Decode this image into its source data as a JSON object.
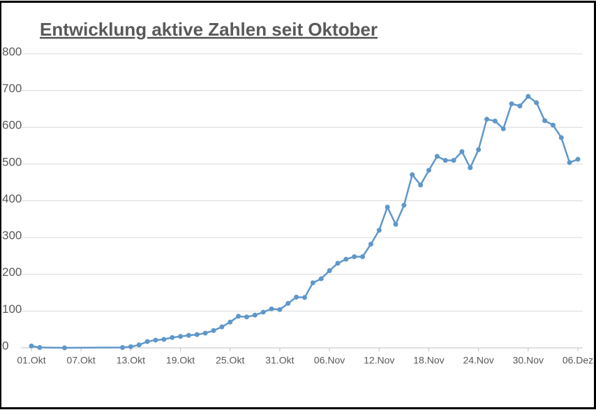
{
  "chart_data": {
    "type": "line",
    "title": "Entwicklung aktive Zahlen seit Oktober",
    "x": [
      "01.Okt",
      "02.Okt",
      "05.Okt",
      "12.Okt",
      "13.Okt",
      "14.Okt",
      "15.Okt",
      "16.Okt",
      "17.Okt",
      "18.Okt",
      "19.Okt",
      "20.Okt",
      "21.Okt",
      "22.Okt",
      "23.Okt",
      "24.Okt",
      "25.Okt",
      "26.Okt",
      "27.Okt",
      "28.Okt",
      "29.Okt",
      "30.Okt",
      "31.Okt",
      "01.Nov",
      "02.Nov",
      "03.Nov",
      "04.Nov",
      "05.Nov",
      "06.Nov",
      "07.Nov",
      "08.Nov",
      "09.Nov",
      "10.Nov",
      "11.Nov",
      "12.Nov",
      "13.Nov",
      "14.Nov",
      "15.Nov",
      "16.Nov",
      "17.Nov",
      "18.Nov",
      "19.Nov",
      "20.Nov",
      "21.Nov",
      "22.Nov",
      "23.Nov",
      "24.Nov",
      "25.Nov",
      "26.Nov",
      "27.Nov",
      "28.Nov",
      "29.Nov",
      "30.Nov",
      "01.Dez",
      "02.Dez",
      "03.Dez",
      "04.Dez",
      "05.Dez",
      "06.Dez"
    ],
    "series": [
      {
        "color": "#5f97c9",
        "values": [
          5,
          1,
          0,
          1,
          3,
          8,
          17,
          21,
          23,
          28,
          31,
          34,
          36,
          40,
          47,
          57,
          70,
          86,
          84,
          89,
          97,
          106,
          104,
          121,
          138,
          137,
          177,
          188,
          210,
          230,
          241,
          248,
          248,
          282,
          320,
          383,
          336,
          388,
          471,
          443,
          483,
          521,
          510,
          510,
          534,
          490,
          539,
          622,
          617,
          596,
          664,
          658,
          684,
          667,
          618,
          606,
          572,
          504,
          513
        ]
      }
    ],
    "xlim": [
      "01.Okt",
      "06.Dez"
    ],
    "xticks": [
      "01.Okt",
      "07.Okt",
      "13.Okt",
      "19.Okt",
      "25.Okt",
      "31.Okt",
      "06.Nov",
      "12.Nov",
      "18.Nov",
      "24.Nov",
      "30.Nov",
      "06.Dez"
    ],
    "ylim": [
      0,
      800
    ],
    "yticks": [
      0,
      100,
      200,
      300,
      400,
      500,
      600,
      700,
      800
    ],
    "grid": true
  }
}
